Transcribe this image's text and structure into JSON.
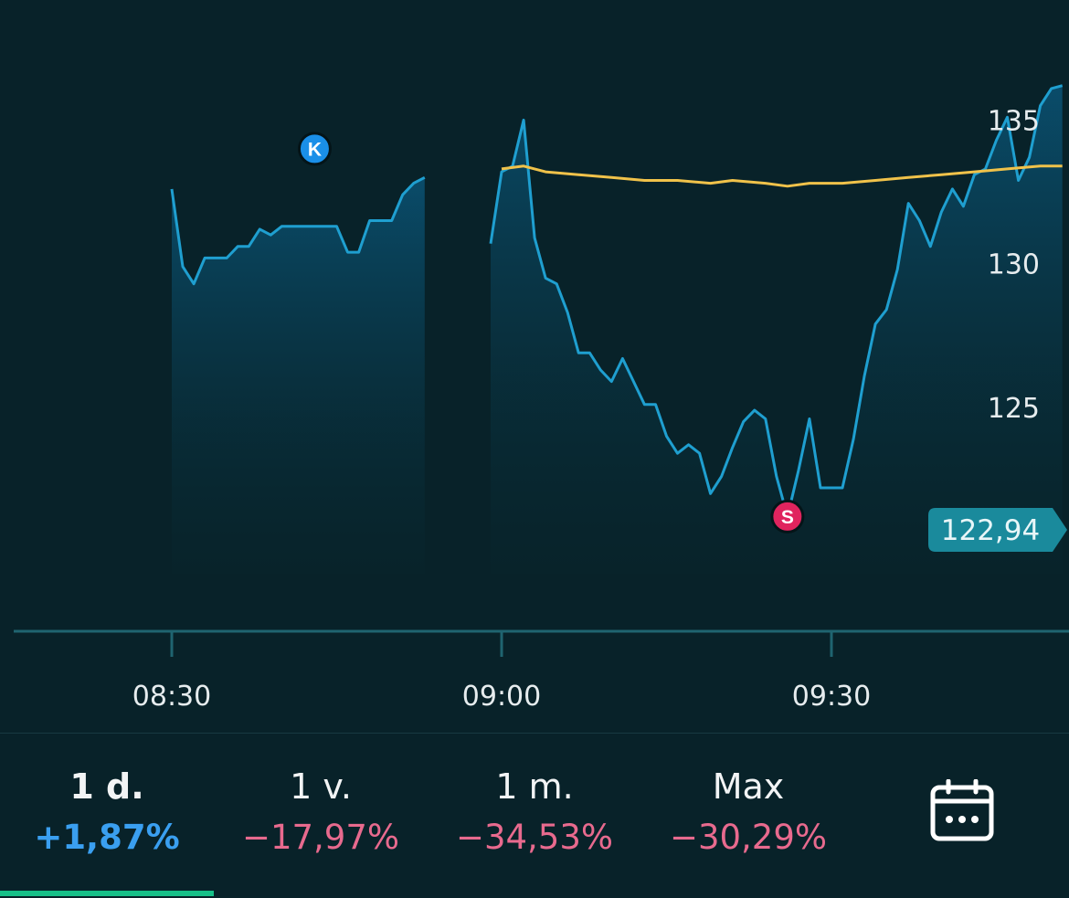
{
  "chart_data": {
    "type": "line",
    "x_ticks": [
      "08:30",
      "09:00",
      "09:30"
    ],
    "y_ticks": [
      125,
      130,
      135
    ],
    "ylim": [
      120.8,
      136
    ],
    "current_price_label": "122,94",
    "series": [
      {
        "segment": "early",
        "points": [
          [
            "08:30",
            132.6
          ],
          [
            "08:31",
            129.9
          ],
          [
            "08:32",
            129.3
          ],
          [
            "08:33",
            130.2
          ],
          [
            "08:34",
            130.2
          ],
          [
            "08:35",
            130.2
          ],
          [
            "08:36",
            130.6
          ],
          [
            "08:37",
            130.6
          ],
          [
            "08:38",
            131.2
          ],
          [
            "08:39",
            131.0
          ],
          [
            "08:40",
            131.3
          ],
          [
            "08:41",
            131.3
          ],
          [
            "08:42",
            131.3
          ],
          [
            "08:43",
            131.3
          ],
          [
            "08:44",
            131.3
          ],
          [
            "08:45",
            131.3
          ],
          [
            "08:46",
            130.4
          ],
          [
            "08:47",
            130.4
          ],
          [
            "08:48",
            131.5
          ],
          [
            "08:49",
            131.5
          ],
          [
            "08:50",
            131.5
          ],
          [
            "08:51",
            132.4
          ],
          [
            "08:52",
            132.8
          ],
          [
            "08:53",
            133.0
          ]
        ]
      },
      {
        "segment": "late",
        "points": [
          [
            "08:59",
            130.7
          ],
          [
            "09:00",
            133.2
          ],
          [
            "09:01",
            133.4
          ],
          [
            "09:02",
            135.0
          ],
          [
            "09:03",
            130.9
          ],
          [
            "09:04",
            129.5
          ],
          [
            "09:05",
            129.3
          ],
          [
            "09:06",
            128.3
          ],
          [
            "09:07",
            126.9
          ],
          [
            "09:08",
            126.9
          ],
          [
            "09:09",
            126.3
          ],
          [
            "09:10",
            125.9
          ],
          [
            "09:11",
            126.7
          ],
          [
            "09:12",
            125.9
          ],
          [
            "09:13",
            125.1
          ],
          [
            "09:14",
            125.1
          ],
          [
            "09:15",
            124.0
          ],
          [
            "09:16",
            123.4
          ],
          [
            "09:17",
            123.7
          ],
          [
            "09:18",
            123.4
          ],
          [
            "09:19",
            122.0
          ],
          [
            "09:20",
            122.6
          ],
          [
            "09:21",
            123.6
          ],
          [
            "09:22",
            124.5
          ],
          [
            "09:23",
            124.9
          ],
          [
            "09:24",
            124.6
          ],
          [
            "09:25",
            122.6
          ],
          [
            "09:26",
            121.2
          ],
          [
            "09:27",
            122.8
          ],
          [
            "09:28",
            124.6
          ],
          [
            "09:29",
            122.2
          ],
          [
            "09:30",
            122.2
          ],
          [
            "09:31",
            122.2
          ],
          [
            "09:32",
            123.9
          ],
          [
            "09:33",
            126.1
          ],
          [
            "09:34",
            127.9
          ],
          [
            "09:35",
            128.4
          ],
          [
            "09:36",
            129.8
          ],
          [
            "09:37",
            132.1
          ],
          [
            "09:38",
            131.5
          ],
          [
            "09:39",
            130.6
          ],
          [
            "09:40",
            131.8
          ],
          [
            "09:41",
            132.6
          ],
          [
            "09:42",
            132.0
          ],
          [
            "09:43",
            133.1
          ],
          [
            "09:44",
            133.3
          ],
          [
            "09:45",
            134.3
          ],
          [
            "09:46",
            135.1
          ],
          [
            "09:47",
            132.9
          ],
          [
            "09:48",
            133.7
          ],
          [
            "09:49",
            135.5
          ],
          [
            "09:50",
            136.1
          ],
          [
            "09:51",
            136.2
          ]
        ]
      },
      {
        "segment": "average",
        "points": [
          [
            "09:00",
            133.3
          ],
          [
            "09:02",
            133.4
          ],
          [
            "09:04",
            133.2
          ],
          [
            "09:07",
            133.1
          ],
          [
            "09:10",
            133.0
          ],
          [
            "09:13",
            132.9
          ],
          [
            "09:16",
            132.9
          ],
          [
            "09:19",
            132.8
          ],
          [
            "09:21",
            132.9
          ],
          [
            "09:24",
            132.8
          ],
          [
            "09:26",
            132.7
          ],
          [
            "09:28",
            132.8
          ],
          [
            "09:31",
            132.8
          ],
          [
            "09:34",
            132.9
          ],
          [
            "09:37",
            133.0
          ],
          [
            "09:40",
            133.1
          ],
          [
            "09:43",
            133.2
          ],
          [
            "09:46",
            133.3
          ],
          [
            "09:49",
            133.4
          ],
          [
            "09:51",
            133.4
          ]
        ]
      }
    ],
    "markers": [
      {
        "label": "K",
        "time": "08:43",
        "price": 134.0
      },
      {
        "label": "S",
        "time": "09:26",
        "price": 121.2
      }
    ],
    "colors": {
      "price_line": "#1f9fd0",
      "average_line": "#f0c24a",
      "buy_marker": "#1a8fe8",
      "sell_marker": "#e0245e",
      "price_label_bg": "#1a8a9c",
      "axis": "#1f6470"
    }
  },
  "periods": [
    {
      "label": "1 d.",
      "change": "+1,87%",
      "direction": "up",
      "active": true
    },
    {
      "label": "1 v.",
      "change": "−17,97%",
      "direction": "down",
      "active": false
    },
    {
      "label": "1 m.",
      "change": "−34,53%",
      "direction": "down",
      "active": false
    },
    {
      "label": "Max",
      "change": "−30,29%",
      "direction": "down",
      "active": false
    }
  ],
  "calendar_icon": "calendar-icon"
}
